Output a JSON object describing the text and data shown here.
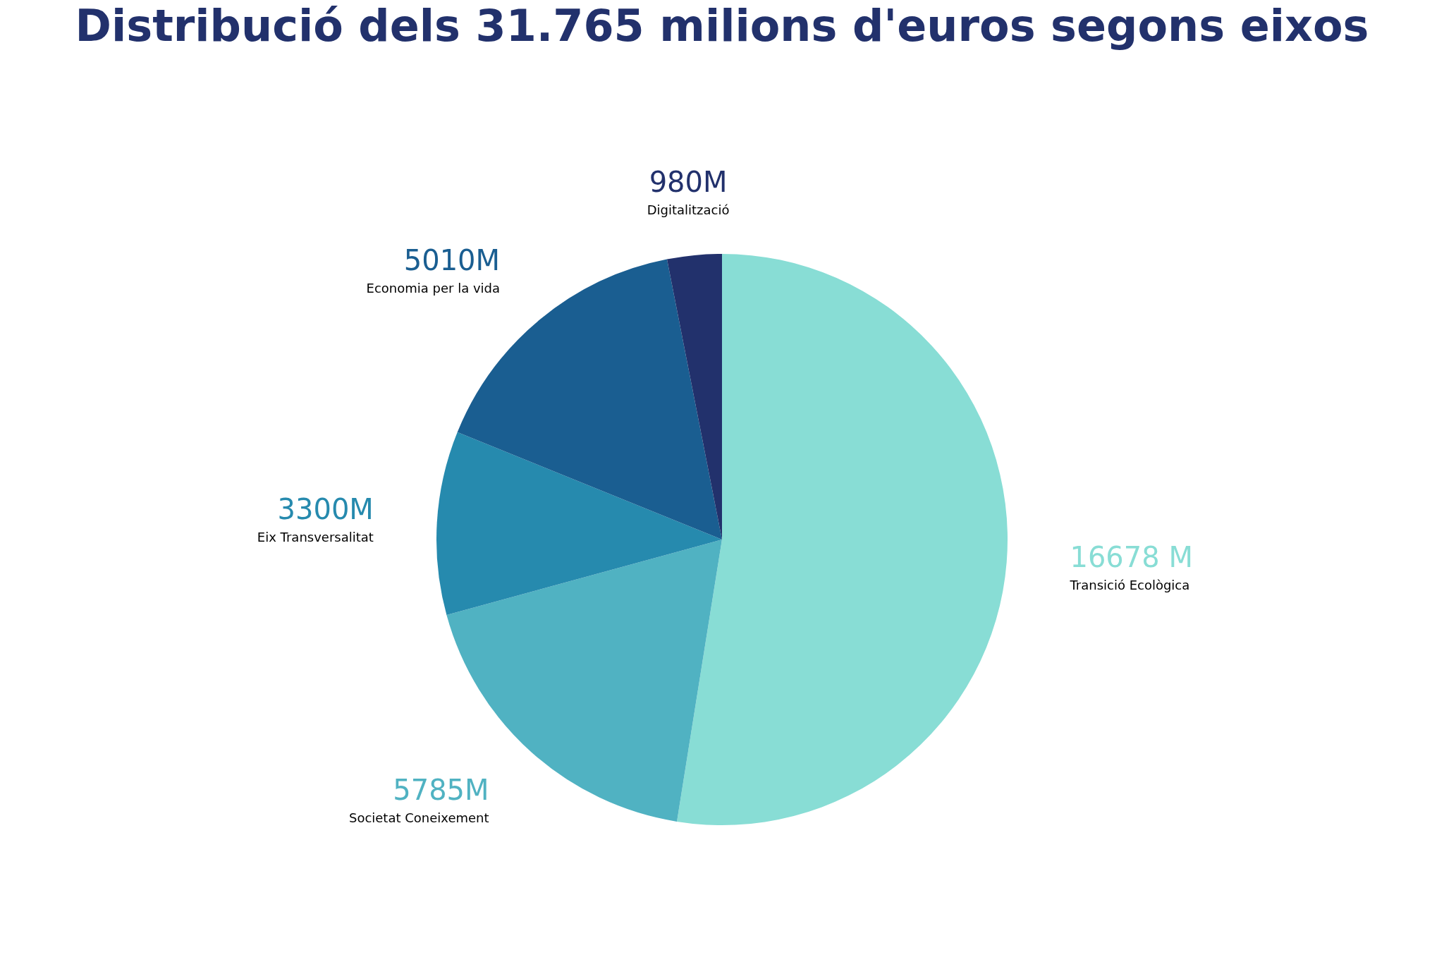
{
  "chart_data": {
    "type": "pie",
    "title": "Distribució dels 31.765 milions d'euros segons eixos",
    "categories": [
      "Transició Ecològica",
      "Societat Coneixement",
      "Eix Transversalitat",
      "Economia per la vida",
      "Digitalització"
    ],
    "values": [
      16678,
      5785,
      3300,
      5010,
      980
    ],
    "colors": [
      "#88ddd5",
      "#50b2c2",
      "#268aae",
      "#1a5e91",
      "#22316c"
    ],
    "value_labels": [
      "16678 M",
      "5785M",
      "3300M",
      "5010M",
      "980M"
    ]
  }
}
